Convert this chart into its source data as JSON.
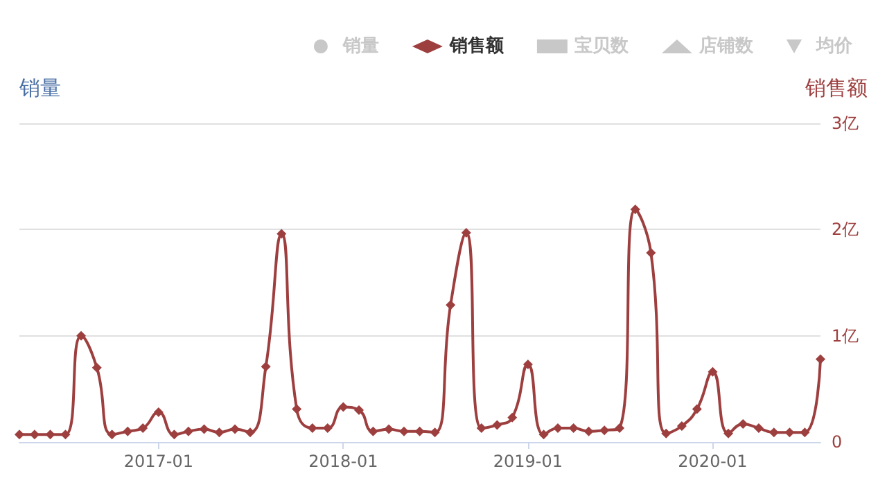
{
  "chart_data": {
    "type": "line",
    "ylabel": "销量",
    "y2label": "销售额",
    "x": [
      "2016-04",
      "2016-05",
      "2016-06",
      "2016-07",
      "2016-08",
      "2016-09",
      "2016-10",
      "2016-11",
      "2016-12",
      "2017-01",
      "2017-02",
      "2017-03",
      "2017-04",
      "2017-05",
      "2017-06",
      "2017-07",
      "2017-08",
      "2017-09",
      "2017-10",
      "2017-11",
      "2017-12",
      "2018-01",
      "2018-02",
      "2018-03",
      "2018-04",
      "2018-05",
      "2018-06",
      "2018-07",
      "2018-08",
      "2018-09",
      "2018-10",
      "2018-11",
      "2018-12",
      "2019-01",
      "2019-02",
      "2019-03",
      "2019-04",
      "2019-05",
      "2019-06",
      "2019-07",
      "2019-08",
      "2019-09",
      "2019-10",
      "2019-11",
      "2019-12",
      "2020-01",
      "2020-02",
      "2020-03",
      "2020-04",
      "2020-05",
      "2020-06",
      "2020-07",
      "2020-08"
    ],
    "xlim": [
      "2016-04",
      "2020-08"
    ],
    "xticks": [
      "2017-01",
      "2018-01",
      "2019-01",
      "2020-01"
    ],
    "y2lim": [
      0,
      3
    ],
    "y2ticks": [
      0,
      {
        "value": 1,
        "label": "1亿"
      },
      {
        "value": 2,
        "label": "2亿"
      },
      {
        "value": 3,
        "label": "3亿"
      }
    ],
    "grid": "y",
    "legend": "top",
    "line_style": "solid",
    "series": [
      {
        "name": "销量",
        "color": "#c8c8c8",
        "marker": "circle",
        "values": [
          null,
          null,
          null,
          null,
          null,
          null,
          null,
          null,
          null,
          null,
          null,
          null,
          null,
          null,
          null,
          null,
          null,
          null,
          null,
          null,
          null,
          null,
          null,
          null,
          null,
          null,
          null,
          null,
          null,
          null,
          null,
          null,
          null,
          null,
          null,
          null,
          null,
          null,
          null,
          null,
          null,
          null,
          null,
          null,
          null,
          null,
          null,
          null,
          null,
          null,
          null,
          null,
          null
        ]
      },
      {
        "name": "销售额",
        "color": "#9e3f3f",
        "marker": "diamond",
        "axis": "y2",
        "values": [
          0.07,
          0.07,
          0.07,
          0.07,
          1.0,
          0.7,
          0.07,
          0.1,
          0.13,
          0.28,
          0.07,
          0.1,
          0.12,
          0.09,
          0.12,
          0.09,
          0.71,
          1.96,
          0.31,
          0.13,
          0.13,
          0.33,
          0.3,
          0.1,
          0.12,
          0.1,
          0.1,
          0.09,
          1.29,
          1.97,
          0.13,
          0.16,
          0.23,
          0.73,
          0.07,
          0.13,
          0.13,
          0.1,
          0.11,
          0.13,
          2.19,
          1.78,
          0.08,
          0.15,
          0.31,
          0.66,
          0.08,
          0.17,
          0.13,
          0.09,
          0.09,
          0.09,
          0.78
        ]
      },
      {
        "name": "宝贝数",
        "color": "#c8c8c8",
        "marker": "square",
        "values": [
          null,
          null,
          null,
          null,
          null,
          null,
          null,
          null,
          null,
          null,
          null,
          null,
          null,
          null,
          null,
          null,
          null,
          null,
          null,
          null,
          null,
          null,
          null,
          null,
          null,
          null,
          null,
          null,
          null,
          null,
          null,
          null,
          null,
          null,
          null,
          null,
          null,
          null,
          null,
          null,
          null,
          null,
          null,
          null,
          null,
          null,
          null,
          null,
          null,
          null,
          null,
          null,
          null
        ]
      },
      {
        "name": "店铺数",
        "color": "#c8c8c8",
        "marker": "triangle",
        "values": [
          null,
          null,
          null,
          null,
          null,
          null,
          null,
          null,
          null,
          null,
          null,
          null,
          null,
          null,
          null,
          null,
          null,
          null,
          null,
          null,
          null,
          null,
          null,
          null,
          null,
          null,
          null,
          null,
          null,
          null,
          null,
          null,
          null,
          null,
          null,
          null,
          null,
          null,
          null,
          null,
          null,
          null,
          null,
          null,
          null,
          null,
          null,
          null,
          null,
          null,
          null,
          null,
          null
        ]
      },
      {
        "name": "均价",
        "color": "#c8c8c8",
        "marker": "triangle-down",
        "values": [
          null,
          null,
          null,
          null,
          null,
          null,
          null,
          null,
          null,
          null,
          null,
          null,
          null,
          null,
          null,
          null,
          null,
          null,
          null,
          null,
          null,
          null,
          null,
          null,
          null,
          null,
          null,
          null,
          null,
          null,
          null,
          null,
          null,
          null,
          null,
          null,
          null,
          null,
          null,
          null,
          null,
          null,
          null,
          null,
          null,
          null,
          null,
          null,
          null,
          null,
          null,
          null,
          null
        ]
      }
    ]
  }
}
